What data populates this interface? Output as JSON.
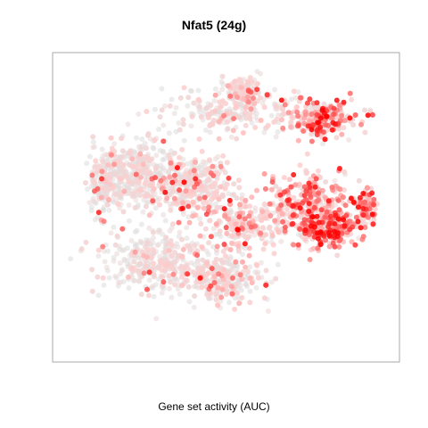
{
  "chart_data": {
    "type": "scatter",
    "title": "Nfat5 (24g)",
    "xlabel": "Gene set activity (AUC)",
    "ylabel": "",
    "axes_visible": false,
    "grid": false,
    "legend": "none",
    "point_count": 3000,
    "colors": {
      "low": "#dddddd",
      "high": "#ff0000",
      "frame": "#aaaaaa"
    },
    "clusters": [
      {
        "name": "",
        "cx": 0.52,
        "cy": 0.82,
        "sx": 0.2,
        "sy": 0.08,
        "n": 220,
        "activity": 0.15
      },
      {
        "name": "",
        "cx": 0.8,
        "cy": 0.8,
        "sx": 0.1,
        "sy": 0.06,
        "n": 220,
        "activity": 0.55
      },
      {
        "name": "",
        "cx": 0.75,
        "cy": 0.5,
        "sx": 0.12,
        "sy": 0.1,
        "n": 260,
        "activity": 0.5
      },
      {
        "name": "",
        "cx": 0.82,
        "cy": 0.4,
        "sx": 0.1,
        "sy": 0.06,
        "n": 240,
        "activity": 0.6
      },
      {
        "name": "",
        "cx": 0.22,
        "cy": 0.6,
        "sx": 0.12,
        "sy": 0.12,
        "n": 340,
        "activity": 0.12
      },
      {
        "name": "",
        "cx": 0.4,
        "cy": 0.55,
        "sx": 0.12,
        "sy": 0.12,
        "n": 320,
        "activity": 0.25
      },
      {
        "name": "",
        "cx": 0.28,
        "cy": 0.28,
        "sx": 0.16,
        "sy": 0.1,
        "n": 340,
        "activity": 0.15
      },
      {
        "name": "",
        "cx": 0.48,
        "cy": 0.22,
        "sx": 0.12,
        "sy": 0.08,
        "n": 260,
        "activity": 0.2
      },
      {
        "name": "",
        "cx": 0.57,
        "cy": 0.4,
        "sx": 0.1,
        "sy": 0.08,
        "n": 200,
        "activity": 0.3
      },
      {
        "name": "",
        "cx": 0.12,
        "cy": 0.55,
        "sx": 0.05,
        "sy": 0.1,
        "n": 140,
        "activity": 0.12
      },
      {
        "name": "",
        "cx": 0.55,
        "cy": 0.9,
        "sx": 0.06,
        "sy": 0.04,
        "n": 120,
        "activity": 0.3
      },
      {
        "name": "",
        "cx": 0.93,
        "cy": 0.48,
        "sx": 0.03,
        "sy": 0.05,
        "n": 80,
        "activity": 0.55
      }
    ]
  }
}
